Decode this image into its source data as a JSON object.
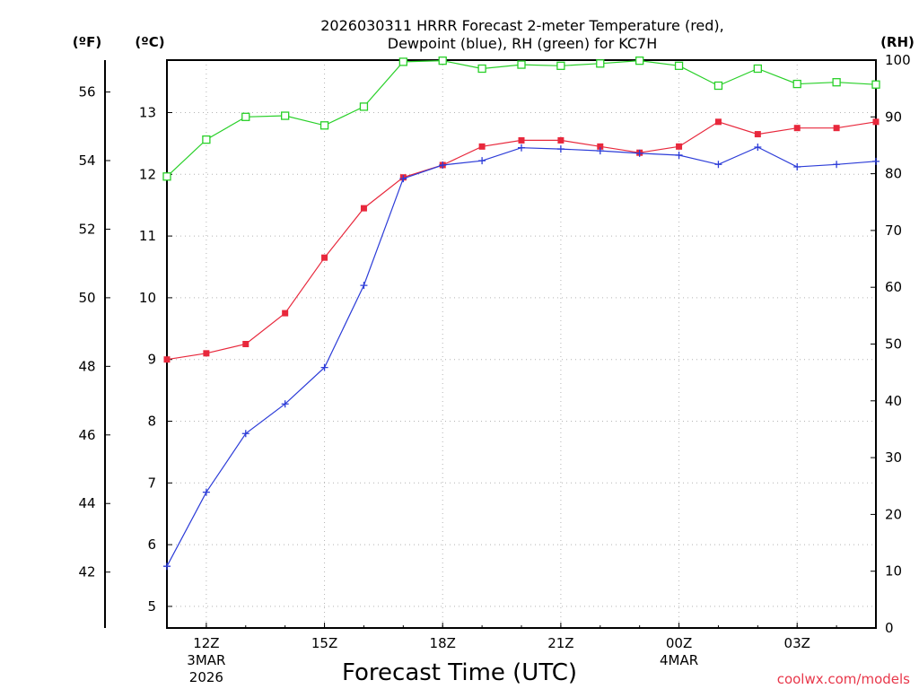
{
  "chart_data": {
    "type": "line",
    "title_line1": "2026030311 HRRR Forecast 2-meter Temperature (red),",
    "title_line2": "Dewpoint (blue), RH (green) for KC7H",
    "xlabel": "Forecast Time (UTC)",
    "credit": "coolwx.com/models",
    "axis_headers": {
      "fahrenheit": "(ºF)",
      "celsius": "(ºC)",
      "rh": "(RH)"
    },
    "celsius_range": [
      4.65,
      13.85
    ],
    "rh_range": [
      0,
      100
    ],
    "x_hours": [
      11,
      12,
      13,
      14,
      15,
      16,
      17,
      18,
      19,
      20,
      21,
      22,
      23,
      24,
      25,
      26,
      27,
      28,
      29
    ],
    "x_ticks": [
      {
        "hour": 12,
        "label": "12Z",
        "sub1": "3MAR",
        "sub2": "2026"
      },
      {
        "hour": 15,
        "label": "15Z",
        "sub1": "",
        "sub2": ""
      },
      {
        "hour": 18,
        "label": "18Z",
        "sub1": "",
        "sub2": ""
      },
      {
        "hour": 21,
        "label": "21Z",
        "sub1": "",
        "sub2": ""
      },
      {
        "hour": 24,
        "label": "00Z",
        "sub1": "4MAR",
        "sub2": ""
      },
      {
        "hour": 27,
        "label": "03Z",
        "sub1": "",
        "sub2": ""
      }
    ],
    "celsius_ticks": [
      5,
      6,
      7,
      8,
      9,
      10,
      11,
      12,
      13
    ],
    "fahrenheit_ticks": [
      42,
      44,
      46,
      48,
      50,
      52,
      54,
      56
    ],
    "rh_ticks": [
      0,
      10,
      20,
      30,
      40,
      50,
      60,
      70,
      80,
      90,
      100
    ],
    "series": [
      {
        "name": "Temperature",
        "units": "°C",
        "color": "#e8283c",
        "marker": "filled-square",
        "values": [
          9.0,
          9.1,
          9.25,
          9.75,
          10.65,
          11.45,
          11.95,
          12.15,
          12.45,
          12.55,
          12.55,
          12.45,
          12.35,
          12.45,
          12.85,
          12.65,
          12.75,
          12.75,
          12.85
        ]
      },
      {
        "name": "Dewpoint",
        "units": "°C",
        "color": "#2c3cd8",
        "marker": "plus",
        "values": [
          5.65,
          6.85,
          7.8,
          8.28,
          8.87,
          10.2,
          11.93,
          12.15,
          12.22,
          12.43,
          12.41,
          12.38,
          12.34,
          12.31,
          12.16,
          12.44,
          12.12,
          12.16,
          12.21
        ]
      },
      {
        "name": "RH",
        "units": "%",
        "color": "#28d028",
        "marker": "open-square",
        "values": [
          79.5,
          86.0,
          90.0,
          90.2,
          88.5,
          91.8,
          99.7,
          99.9,
          98.5,
          99.2,
          99.0,
          99.4,
          99.9,
          99.0,
          95.5,
          98.5,
          95.8,
          96.1,
          95.7
        ]
      }
    ]
  }
}
